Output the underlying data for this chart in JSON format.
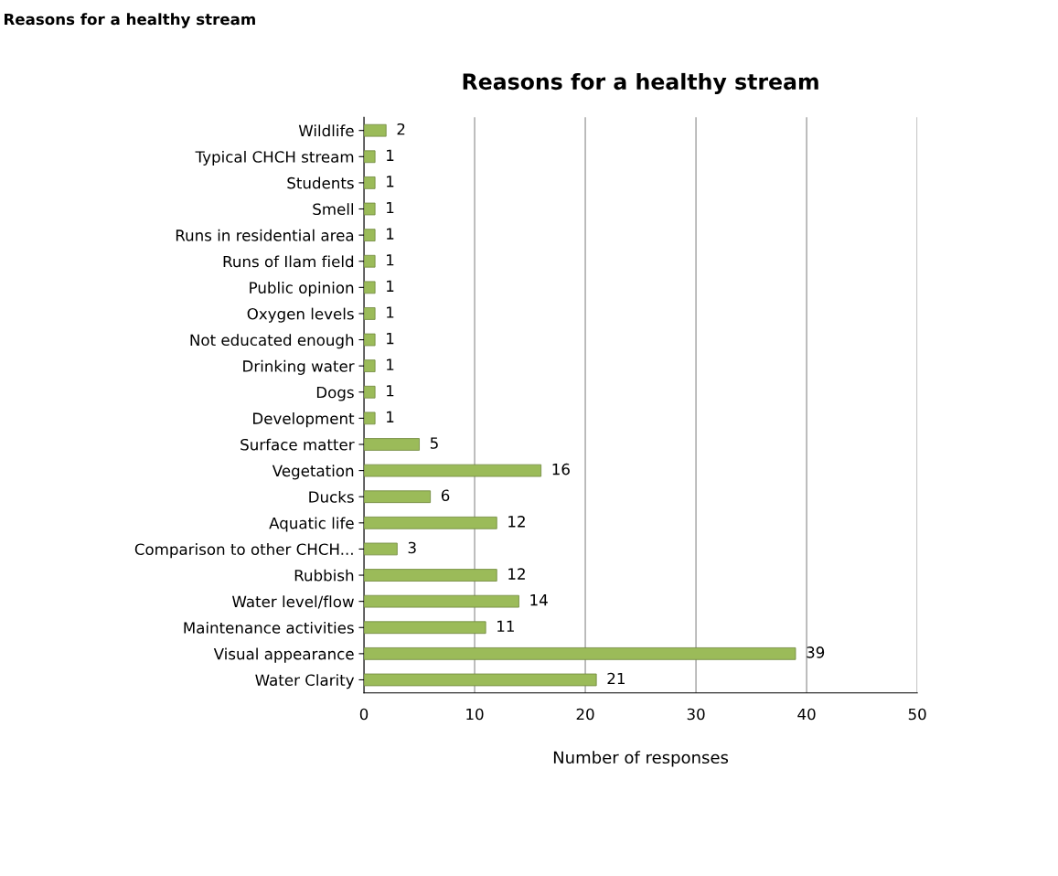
{
  "chart_data": {
    "type": "bar",
    "orientation": "horizontal",
    "title": "Reasons for a healthy stream",
    "xlabel": "Number of responses",
    "annotations": [
      "Reasons for a healthy stream"
    ],
    "categories": [
      "Wildlife",
      "Typical CHCH stream",
      "Students",
      "Smell",
      "Runs in residential area",
      "Runs of Ilam field",
      "Public opinion",
      "Oxygen levels",
      "Not educated enough",
      "Drinking water",
      "Dogs",
      "Development",
      "Surface matter",
      "Vegetation",
      "Ducks",
      "Aquatic life",
      "Comparison to other CHCH...",
      "Rubbish",
      "Water level/flow",
      "Maintenance activities",
      "Visual appearance",
      "Water Clarity"
    ],
    "values": [
      2,
      1,
      1,
      1,
      1,
      1,
      1,
      1,
      1,
      1,
      1,
      1,
      5,
      16,
      6,
      12,
      3,
      12,
      14,
      11,
      39,
      21
    ],
    "color": "#9bbb59",
    "xlim": [
      0,
      50
    ],
    "xticks": [
      0,
      10,
      20,
      30,
      40,
      50
    ],
    "grid": "x",
    "data_labels": true,
    "legend": false
  }
}
